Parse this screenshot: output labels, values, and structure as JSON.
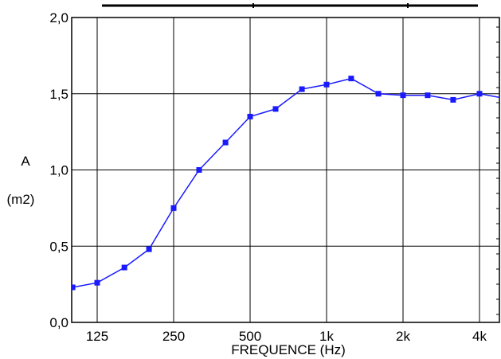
{
  "chart_data": {
    "type": "line",
    "xlabel": "FREQUENCE (Hz)",
    "ylabel": "A",
    "ylabel_unit": "(m2)",
    "x_scale": "log",
    "ylim": [
      0.0,
      2.0
    ],
    "yticks": [
      {
        "value": 0.0,
        "label": "0,0"
      },
      {
        "value": 0.5,
        "label": "0,5"
      },
      {
        "value": 1.0,
        "label": "1,0"
      },
      {
        "value": 1.5,
        "label": "1,5"
      },
      {
        "value": 2.0,
        "label": "2,0"
      }
    ],
    "xticks": [
      {
        "value": 125,
        "label": "125"
      },
      {
        "value": 250,
        "label": "250"
      },
      {
        "value": 500,
        "label": "500"
      },
      {
        "value": 1000,
        "label": "1k"
      },
      {
        "value": 2000,
        "label": "2k"
      },
      {
        "value": 4000,
        "label": "4k"
      }
    ],
    "grid": true,
    "line_color": "#1a1aff",
    "series": [
      {
        "x": [
          100,
          125,
          160,
          200,
          250,
          315,
          400,
          500,
          630,
          800,
          1000,
          1250,
          1600,
          2000,
          2500,
          3150,
          4000,
          5000
        ],
        "values": [
          0.23,
          0.26,
          0.36,
          0.48,
          0.75,
          1.0,
          1.18,
          1.35,
          1.4,
          1.53,
          1.56,
          1.6,
          1.5,
          1.49,
          1.49,
          1.46,
          1.5,
          1.47
        ]
      }
    ]
  }
}
